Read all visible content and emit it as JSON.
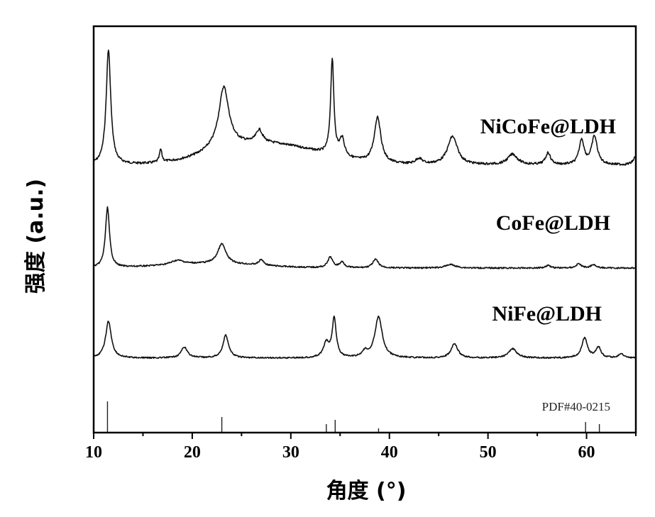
{
  "chart_data": {
    "type": "line",
    "xlabel": "角度 (°)",
    "ylabel": "强度 (a.u.)",
    "xlim": [
      10,
      65
    ],
    "x_ticks": [
      10,
      20,
      30,
      40,
      50,
      60
    ],
    "y_ticks_shown": false,
    "grid": false,
    "series": [
      {
        "name": "NiCoFe@LDH",
        "baseline": 233,
        "peaks": [
          [
            11.5,
            162,
            0.28
          ],
          [
            16.8,
            18,
            0.15
          ],
          [
            23.2,
            83,
            0.6
          ],
          [
            23.2,
            10,
            2.5
          ],
          [
            26.8,
            18,
            0.4
          ],
          [
            34.2,
            135,
            0.2
          ],
          [
            35.2,
            25,
            0.3
          ],
          [
            38.8,
            65,
            0.4
          ],
          [
            43.0,
            8,
            0.4
          ],
          [
            46.4,
            40,
            0.6
          ],
          [
            52.5,
            15,
            0.6
          ],
          [
            56.1,
            17,
            0.3
          ],
          [
            59.5,
            35,
            0.3
          ],
          [
            60.8,
            40,
            0.35
          ],
          [
            65.0,
            12,
            0.3
          ]
        ],
        "humps": [
          [
            28.0,
            28,
            5.0
          ]
        ],
        "noise": 1.6
      },
      {
        "name": "CoFe@LDH",
        "baseline": 378,
        "peaks": [
          [
            11.4,
            85,
            0.25
          ],
          [
            18.5,
            6,
            0.8
          ],
          [
            23.0,
            28,
            0.5
          ],
          [
            27.0,
            8,
            0.3
          ],
          [
            34.0,
            15,
            0.3
          ],
          [
            35.2,
            8,
            0.3
          ],
          [
            38.6,
            12,
            0.35
          ],
          [
            46.2,
            5,
            0.6
          ],
          [
            56.1,
            4,
            0.3
          ],
          [
            59.2,
            6,
            0.3
          ],
          [
            60.7,
            5,
            0.3
          ]
        ],
        "humps": [
          [
            22.0,
            6,
            5.0
          ]
        ],
        "noise": 1.0
      },
      {
        "name": "NiFe@LDH",
        "baseline": 505,
        "peaks": [
          [
            11.5,
            52,
            0.35
          ],
          [
            19.2,
            15,
            0.4
          ],
          [
            23.4,
            32,
            0.35
          ],
          [
            33.6,
            20,
            0.35
          ],
          [
            34.4,
            55,
            0.25
          ],
          [
            37.5,
            8,
            0.3
          ],
          [
            38.9,
            58,
            0.45
          ],
          [
            46.6,
            20,
            0.4
          ],
          [
            52.5,
            13,
            0.5
          ],
          [
            59.8,
            28,
            0.35
          ],
          [
            61.2,
            15,
            0.3
          ],
          [
            63.5,
            6,
            0.3
          ]
        ],
        "humps": [],
        "noise": 1.0
      }
    ],
    "reference": {
      "name": "PDF#40-0215",
      "lines": [
        [
          11.4,
          44
        ],
        [
          23.0,
          22
        ],
        [
          33.6,
          12
        ],
        [
          34.5,
          18
        ],
        [
          38.9,
          6
        ],
        [
          59.9,
          15
        ],
        [
          61.3,
          12
        ]
      ]
    }
  }
}
